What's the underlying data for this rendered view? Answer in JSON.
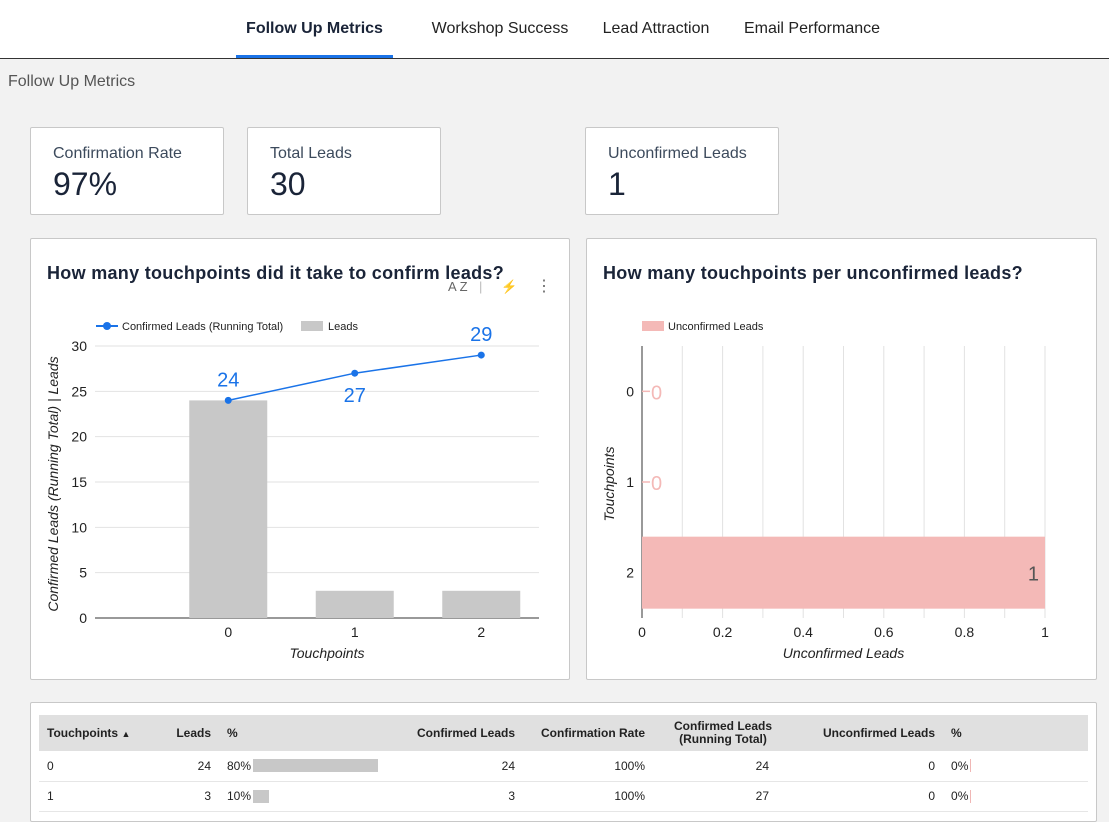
{
  "nav": {
    "tabs": [
      {
        "label": "Follow Up Metrics",
        "active": true
      },
      {
        "label": "Workshop Success",
        "active": false
      },
      {
        "label": "Lead Attraction",
        "active": false
      },
      {
        "label": "Email Performance",
        "active": false
      }
    ]
  },
  "page": {
    "title": "Follow Up Metrics"
  },
  "kpis": [
    {
      "label": "Confirmation Rate",
      "value": "97%"
    },
    {
      "label": "Total Leads",
      "value": "30"
    },
    {
      "label": "Unconfirmed Leads",
      "value": "1"
    }
  ],
  "chart_left": {
    "title": "How many touchpoints did it take to confirm leads?",
    "tools": {
      "sort": "A Z",
      "lightning": "⚡",
      "more": "⋮"
    }
  },
  "chart_right": {
    "title": "How many touchpoints per unconfirmed leads?"
  },
  "chart_data": [
    {
      "type": "bar",
      "title": "How many touchpoints did it take to confirm leads?",
      "categories": [
        "0",
        "1",
        "2"
      ],
      "series": [
        {
          "name": "Leads",
          "kind": "bar",
          "color": "#c8c8c8",
          "values": [
            24,
            3,
            3
          ]
        },
        {
          "name": "Confirmed Leads (Running Total)",
          "kind": "line",
          "color": "#1a73e8",
          "values": [
            24,
            27,
            29
          ],
          "labels": [
            "24",
            "27",
            "29"
          ]
        }
      ],
      "legend": [
        "Confirmed Leads (Running Total)",
        "Leads"
      ],
      "legend_position": "top-left",
      "xlabel": "Touchpoints",
      "ylabel": "Confirmed Leads (Running Total) | Leads",
      "ylim": [
        0,
        30
      ],
      "yticks": [
        "0",
        "5",
        "10",
        "15",
        "20",
        "25",
        "30"
      ],
      "grid": true
    },
    {
      "type": "bar",
      "orientation": "horizontal",
      "title": "How many touchpoints per unconfirmed leads?",
      "categories": [
        "0",
        "1",
        "2"
      ],
      "series": [
        {
          "name": "Unconfirmed Leads",
          "color": "#f4b9b7",
          "values": [
            0,
            0,
            1
          ],
          "labels": [
            "0",
            "0",
            "1"
          ]
        }
      ],
      "legend": [
        "Unconfirmed Leads"
      ],
      "legend_position": "top-left",
      "xlabel": "Unconfirmed Leads",
      "ylabel": "Touchpoints",
      "xlim": [
        0,
        1
      ],
      "xticks": [
        "0",
        "0.2",
        "0.4",
        "0.6",
        "0.8",
        "1"
      ],
      "grid": true
    }
  ],
  "table": {
    "headers": [
      "Touchpoints",
      "Leads",
      "%",
      "Confirmed Leads",
      "Confirmation Rate",
      "Confirmed Leads (Running Total)",
      "Unconfirmed Leads",
      "%"
    ],
    "sort_indicator": "▲",
    "rows": [
      {
        "touchpoints": "0",
        "leads": "24",
        "pct": "80%",
        "pct_value": 0.8,
        "confirmed": "24",
        "rate": "100%",
        "running": "24",
        "unconfirmed": "0",
        "unconf_pct": "0%"
      },
      {
        "touchpoints": "1",
        "leads": "3",
        "pct": "10%",
        "pct_value": 0.1,
        "confirmed": "3",
        "rate": "100%",
        "running": "27",
        "unconfirmed": "0",
        "unconf_pct": "0%"
      }
    ]
  },
  "colors": {
    "accent": "#1a73e8",
    "bar_gray": "#c8c8c8",
    "pink": "#f4b9b7",
    "title_navy": "#1a2438"
  }
}
